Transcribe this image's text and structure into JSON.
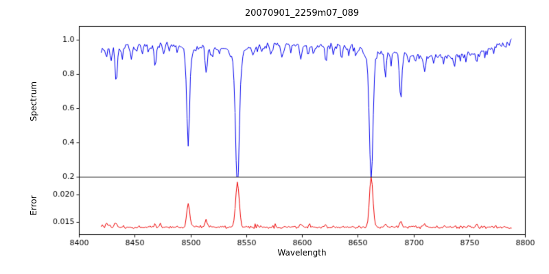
{
  "figure": {
    "title": "20070901_2259m07_089",
    "xlabel": "Wavelength",
    "ylabel_top": "Spectrum",
    "ylabel_bottom": "Error"
  },
  "chart_data": {
    "type": "line",
    "title": "20070901_2259m07_089",
    "xlabel": "Wavelength",
    "xlim": [
      8400,
      8800
    ],
    "x_ticks": [
      8400,
      8450,
      8500,
      8550,
      8600,
      8650,
      8700,
      8750,
      8800
    ],
    "x_data_range": [
      8420,
      8788
    ],
    "sample_step": 1.0,
    "noise_seed": 7,
    "legend": "none",
    "grid": false,
    "panels": [
      {
        "name": "spectrum",
        "ylabel": "Spectrum",
        "color": "#0000ee",
        "ylim": [
          0.2,
          1.08
        ],
        "y_ticks": [
          0.2,
          0.4,
          0.6,
          0.8,
          1.0
        ],
        "y_tick_labels": [
          "0.2",
          "0.4",
          "0.6",
          "0.8",
          "1.0"
        ],
        "continuum_points": [
          [
            8420,
            0.945
          ],
          [
            8450,
            0.965
          ],
          [
            8480,
            0.97
          ],
          [
            8510,
            0.96
          ],
          [
            8540,
            0.965
          ],
          [
            8570,
            0.965
          ],
          [
            8600,
            0.965
          ],
          [
            8630,
            0.965
          ],
          [
            8660,
            0.955
          ],
          [
            8680,
            0.93
          ],
          [
            8705,
            0.9
          ],
          [
            8730,
            0.905
          ],
          [
            8755,
            0.925
          ],
          [
            8775,
            0.96
          ],
          [
            8790,
            1.0
          ]
        ],
        "noise_amplitude": 0.022,
        "dip_probability": 0.12,
        "dip_depth": 0.04,
        "max_value": 1.035,
        "strong_lines": [
          [
            8498.0,
            0.53,
            1.3,
            0.05,
            5
          ],
          [
            8542.1,
            0.735,
            1.7,
            0.09,
            7
          ],
          [
            8662.1,
            0.7,
            1.6,
            0.08,
            6
          ]
        ],
        "minor_lines": [
          [
            8424.5,
            0.05,
            0.8
          ],
          [
            8429,
            0.07,
            0.8
          ],
          [
            8433.5,
            0.2,
            1.0
          ],
          [
            8439,
            0.06,
            0.7
          ],
          [
            8447,
            0.09,
            0.8
          ],
          [
            8452,
            0.04,
            0.6
          ],
          [
            8457,
            0.05,
            0.7
          ],
          [
            8462,
            0.04,
            0.6
          ],
          [
            8468.5,
            0.13,
            0.9
          ],
          [
            8476,
            0.06,
            0.7
          ],
          [
            8481,
            0.04,
            0.6
          ],
          [
            8488,
            0.04,
            0.6
          ],
          [
            8514.2,
            0.15,
            0.9
          ],
          [
            8519.5,
            0.07,
            0.7
          ],
          [
            8526,
            0.05,
            0.7
          ],
          [
            8536,
            0.04,
            0.6
          ],
          [
            8556,
            0.05,
            0.7
          ],
          [
            8564,
            0.04,
            0.7
          ],
          [
            8572,
            0.04,
            0.6
          ],
          [
            8582,
            0.06,
            0.8
          ],
          [
            8590,
            0.04,
            0.6
          ],
          [
            8599,
            0.08,
            0.9
          ],
          [
            8606,
            0.04,
            0.6
          ],
          [
            8611,
            0.05,
            0.7
          ],
          [
            8621.5,
            0.1,
            0.9
          ],
          [
            8628,
            0.04,
            0.6
          ],
          [
            8636,
            0.05,
            0.7
          ],
          [
            8642,
            0.04,
            0.6
          ],
          [
            8648,
            0.05,
            0.7
          ],
          [
            8674.8,
            0.15,
            0.8
          ],
          [
            8680,
            0.05,
            0.6
          ],
          [
            8688.6,
            0.26,
            1.0
          ],
          [
            8696,
            0.06,
            0.7
          ],
          [
            8702,
            0.04,
            0.6
          ],
          [
            8710,
            0.08,
            0.9
          ],
          [
            8718,
            0.05,
            0.7
          ],
          [
            8727,
            0.04,
            0.6
          ],
          [
            8736,
            0.06,
            0.8
          ],
          [
            8742,
            0.04,
            0.6
          ],
          [
            8747,
            0.04,
            0.6
          ],
          [
            8757,
            0.06,
            0.8
          ],
          [
            8764,
            0.04,
            0.6
          ],
          [
            8772,
            0.04,
            0.6
          ]
        ]
      },
      {
        "name": "error",
        "ylabel": "Error",
        "color": "#ee0000",
        "ylim": [
          0.0128,
          0.0232
        ],
        "y_ticks": [
          0.015,
          0.02
        ],
        "y_tick_labels": [
          "0.015",
          "0.020"
        ],
        "baseline": 0.0141,
        "noise_amplitude": 0.0003,
        "spike_probability": 0.07,
        "spike_height": 0.0006,
        "peaks": [
          [
            8425,
            0.0009,
            1.0
          ],
          [
            8433,
            0.0009,
            1.0
          ],
          [
            8468,
            0.0006,
            0.9
          ],
          [
            8498.0,
            0.0045,
            1.3
          ],
          [
            8514,
            0.0012,
            0.9
          ],
          [
            8542.1,
            0.0081,
            1.6
          ],
          [
            8599,
            0.0004,
            0.8
          ],
          [
            8621,
            0.0005,
            0.9
          ],
          [
            8662.1,
            0.0092,
            1.5
          ],
          [
            8674.8,
            0.0007,
            0.8
          ],
          [
            8688.6,
            0.0013,
            1.0
          ],
          [
            8710,
            0.0005,
            0.9
          ],
          [
            8757,
            0.0005,
            0.8
          ]
        ]
      }
    ]
  }
}
